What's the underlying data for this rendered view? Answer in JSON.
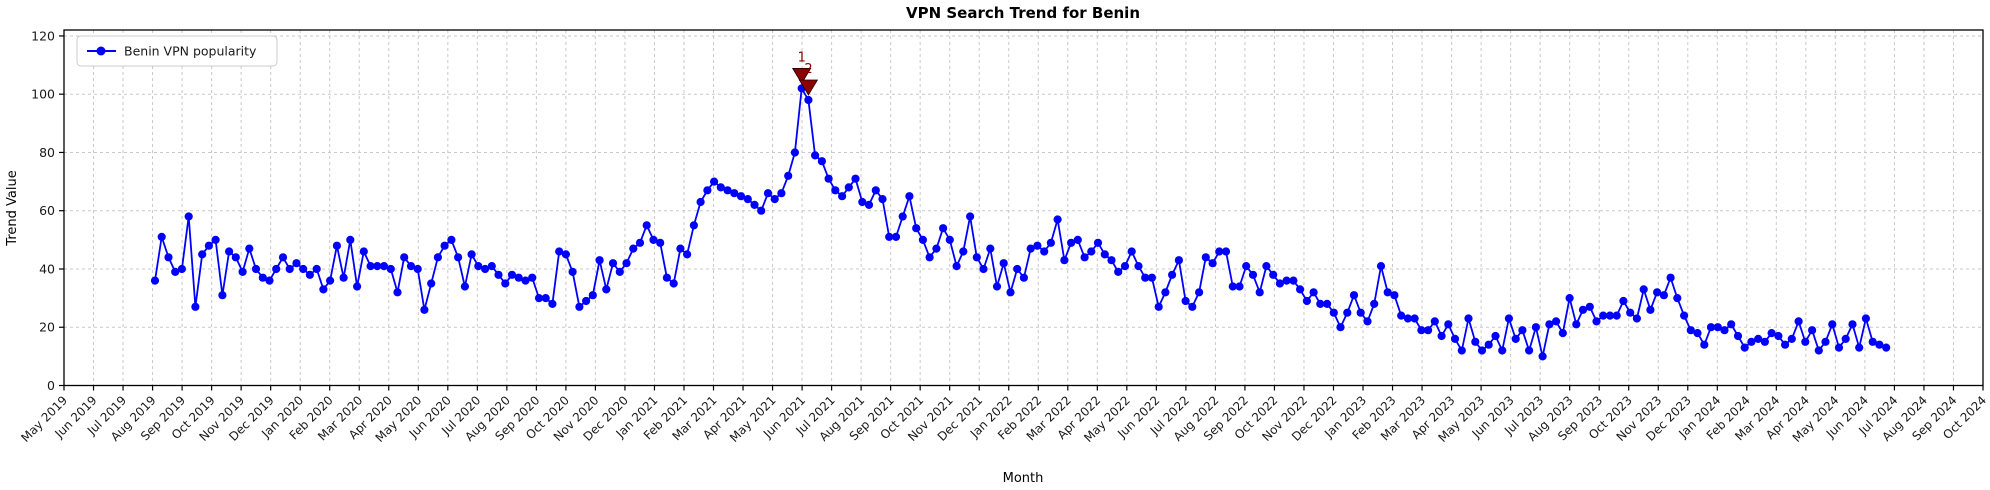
{
  "colors": {
    "line": "#0000ff",
    "annotation": "#8b0000",
    "grid": "#c9c9c9",
    "spine": "#000000",
    "background": "#ffffff",
    "text": "#1a1a1a"
  },
  "chart_data": {
    "type": "line",
    "title": "VPN Search Trend for Benin",
    "xlabel": "Month",
    "ylabel": "Trend Value",
    "grid": "dashed",
    "legend_position": "upper left",
    "y_ticks": [
      0,
      20,
      40,
      60,
      80,
      100,
      120
    ],
    "ylim": [
      0,
      122
    ],
    "x_tick_labels": [
      "May 2019",
      "Jun 2019",
      "Jul 2019",
      "Aug 2019",
      "Sep 2019",
      "Oct 2019",
      "Nov 2019",
      "Dec 2019",
      "Jan 2020",
      "Feb 2020",
      "Mar 2020",
      "Apr 2020",
      "May 2020",
      "Jun 2020",
      "Jul 2020",
      "Aug 2020",
      "Sep 2020",
      "Oct 2020",
      "Nov 2020",
      "Dec 2020",
      "Jan 2021",
      "Feb 2021",
      "Mar 2021",
      "Apr 2021",
      "May 2021",
      "Jun 2021",
      "Jul 2021",
      "Aug 2021",
      "Sep 2021",
      "Oct 2021",
      "Nov 2021",
      "Dec 2021",
      "Jan 2022",
      "Feb 2022",
      "Mar 2022",
      "Apr 2022",
      "May 2022",
      "Jun 2022",
      "Jul 2022",
      "Aug 2022",
      "Sep 2022",
      "Oct 2022",
      "Nov 2022",
      "Dec 2022",
      "Jan 2023",
      "Feb 2023",
      "Mar 2023",
      "Apr 2023",
      "May 2023",
      "Jun 2023",
      "Jul 2023",
      "Aug 2023",
      "Sep 2023",
      "Oct 2023",
      "Nov 2023",
      "Dec 2023",
      "Jan 2024",
      "Feb 2024",
      "Mar 2024",
      "Apr 2024",
      "May 2024",
      "Jun 2024",
      "Jul 2024",
      "Aug 2024",
      "Sep 2024",
      "Oct 2024"
    ],
    "series": [
      {
        "name": "Benin VPN popularity",
        "color": "#0000ff",
        "marker": "circle",
        "cadence": "weekly",
        "x_start_label": "Aug 2019",
        "x_end_label": "Jul 2024",
        "values": [
          36,
          51,
          44,
          39,
          40,
          58,
          27,
          45,
          48,
          50,
          31,
          46,
          44,
          39,
          47,
          40,
          37,
          36,
          40,
          44,
          40,
          42,
          40,
          38,
          40,
          33,
          36,
          48,
          37,
          50,
          34,
          46,
          41,
          41,
          41,
          40,
          32,
          44,
          41,
          40,
          26,
          35,
          44,
          48,
          50,
          44,
          34,
          45,
          41,
          40,
          41,
          38,
          35,
          38,
          37,
          36,
          37,
          30,
          30,
          28,
          46,
          45,
          39,
          27,
          29,
          31,
          43,
          33,
          42,
          39,
          42,
          47,
          49,
          55,
          50,
          49,
          37,
          35,
          47,
          45,
          55,
          63,
          67,
          70,
          68,
          67,
          66,
          65,
          64,
          62,
          60,
          66,
          64,
          66,
          72,
          80,
          102,
          98,
          79,
          77,
          71,
          67,
          65,
          68,
          71,
          63,
          62,
          67,
          64,
          51,
          51,
          58,
          65,
          54,
          50,
          44,
          47,
          54,
          50,
          41,
          46,
          58,
          44,
          40,
          47,
          34,
          42,
          32,
          40,
          37,
          47,
          48,
          46,
          49,
          57,
          43,
          49,
          50,
          44,
          46,
          49,
          45,
          43,
          39,
          41,
          46,
          41,
          37,
          37,
          27,
          32,
          38,
          43,
          29,
          27,
          32,
          44,
          42,
          46,
          46,
          34,
          34,
          41,
          38,
          32,
          41,
          38,
          35,
          36,
          36,
          33,
          29,
          32,
          28,
          28,
          25,
          20,
          25,
          31,
          25,
          22,
          28,
          41,
          32,
          31,
          24,
          23,
          23,
          19,
          19,
          22,
          17,
          21,
          16,
          12,
          23,
          15,
          12,
          14,
          17,
          12,
          23,
          16,
          19,
          12,
          20,
          10,
          21,
          22,
          18,
          30,
          21,
          26,
          27,
          22,
          24,
          24,
          24,
          29,
          25,
          23,
          33,
          26,
          32,
          31,
          37,
          30,
          24,
          19,
          18,
          14,
          20,
          20,
          19,
          21,
          17,
          13,
          15,
          16,
          15,
          18,
          17,
          14,
          16,
          22,
          15,
          19,
          12,
          15,
          21,
          13,
          16,
          21,
          13,
          23,
          15,
          14,
          13
        ]
      }
    ],
    "annotations": [
      {
        "label": "1",
        "point_index": 96,
        "value": 102,
        "marker": "triangle-down",
        "color": "#8b0000"
      },
      {
        "label": "2",
        "point_index": 97,
        "value": 98,
        "marker": "triangle-down",
        "color": "#8b0000"
      }
    ]
  }
}
